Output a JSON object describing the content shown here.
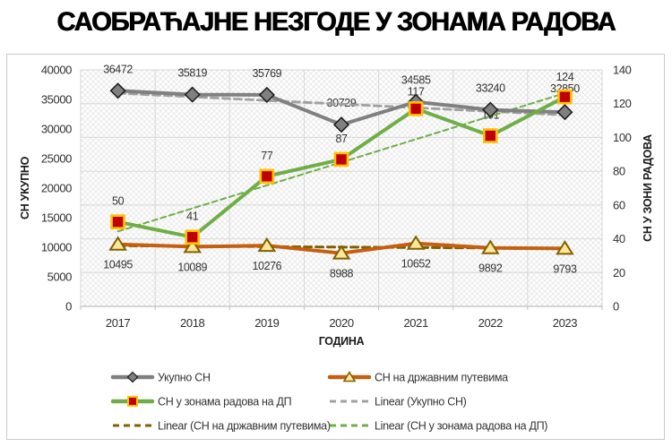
{
  "chart_data": {
    "type": "line",
    "title": "САОБРАЋАЈНЕ НЕЗГОДЕ У ЗОНАМА РАДОВА",
    "xlabel": "ГОДИНА",
    "ylabel_left": "СН УКУПНО",
    "ylabel_right": "СН У ЗОНИ РАДОВА",
    "categories": [
      "2017",
      "2018",
      "2019",
      "2020",
      "2021",
      "2022",
      "2023"
    ],
    "left_axis": {
      "min": 0,
      "max": 40000,
      "step": 5000,
      "ticks": [
        "0",
        "5000",
        "10000",
        "15000",
        "20000",
        "25000",
        "30000",
        "35000",
        "40000"
      ]
    },
    "right_axis": {
      "min": 0,
      "max": 140,
      "step": 20,
      "ticks": [
        "0",
        "20",
        "40",
        "60",
        "80",
        "100",
        "120",
        "140"
      ]
    },
    "grid": true,
    "series": [
      {
        "name": "Укупно СН",
        "axis": "left",
        "values": [
          36472,
          35819,
          35769,
          30729,
          34585,
          33240,
          32850
        ],
        "color": "#808080",
        "marker": "diamond",
        "marker_fill": "#808080",
        "marker_stroke": "#1a1a1a",
        "label_position": "above"
      },
      {
        "name": "СН на државним путевима",
        "axis": "left",
        "values": [
          10495,
          10089,
          10276,
          8988,
          10652,
          9892,
          9793
        ],
        "color": "#c55f11",
        "marker": "triangle",
        "marker_fill": "#ffe699",
        "marker_stroke": "#806000",
        "label_position": "below"
      },
      {
        "name": "СН у зонама радова на ДП",
        "axis": "right",
        "values": [
          50,
          41,
          77,
          87,
          117,
          101,
          124
        ],
        "color": "#70ad47",
        "marker": "square",
        "marker_fill": "#c00000",
        "marker_stroke": "#ffc000",
        "label_position": "above"
      }
    ],
    "trendlines": [
      {
        "name": "Linear (Укупно СН)",
        "series": 0,
        "color": "#a0a0a0",
        "dash": "8 5",
        "width": 2.8
      },
      {
        "name": "Linear (СН на државним путевима)",
        "series": 1,
        "color": "#7f6000",
        "dash": "8 5",
        "width": 3
      },
      {
        "name": "Linear (СН у зонама радова на ДП)",
        "series": 2,
        "color": "#70ad47",
        "dash": "6 4",
        "width": 2
      }
    ],
    "legend": {
      "position": "bottom",
      "entries": [
        {
          "label": "Укупно СН",
          "line": "solid",
          "color": "#808080",
          "marker": "diamond",
          "marker_fill": "#808080",
          "marker_stroke": "#1a1a1a"
        },
        {
          "label": "СН на државним путевима",
          "line": "solid",
          "color": "#c55f11",
          "marker": "triangle",
          "marker_fill": "#ffe699",
          "marker_stroke": "#806000"
        },
        {
          "label": "СН у зонама радова на ДП",
          "line": "solid",
          "color": "#70ad47",
          "marker": "square",
          "marker_fill": "#c00000",
          "marker_stroke": "#ffc000"
        },
        {
          "label": "Linear (Укупно СН)",
          "line": "dashed",
          "color": "#a0a0a0"
        },
        {
          "label": "Linear (СН на државним путевима)",
          "line": "dashed",
          "color": "#7f6000"
        },
        {
          "label": "Linear (СН у зонама радова на ДП)",
          "line": "dashed",
          "color": "#70ad47"
        }
      ]
    }
  }
}
